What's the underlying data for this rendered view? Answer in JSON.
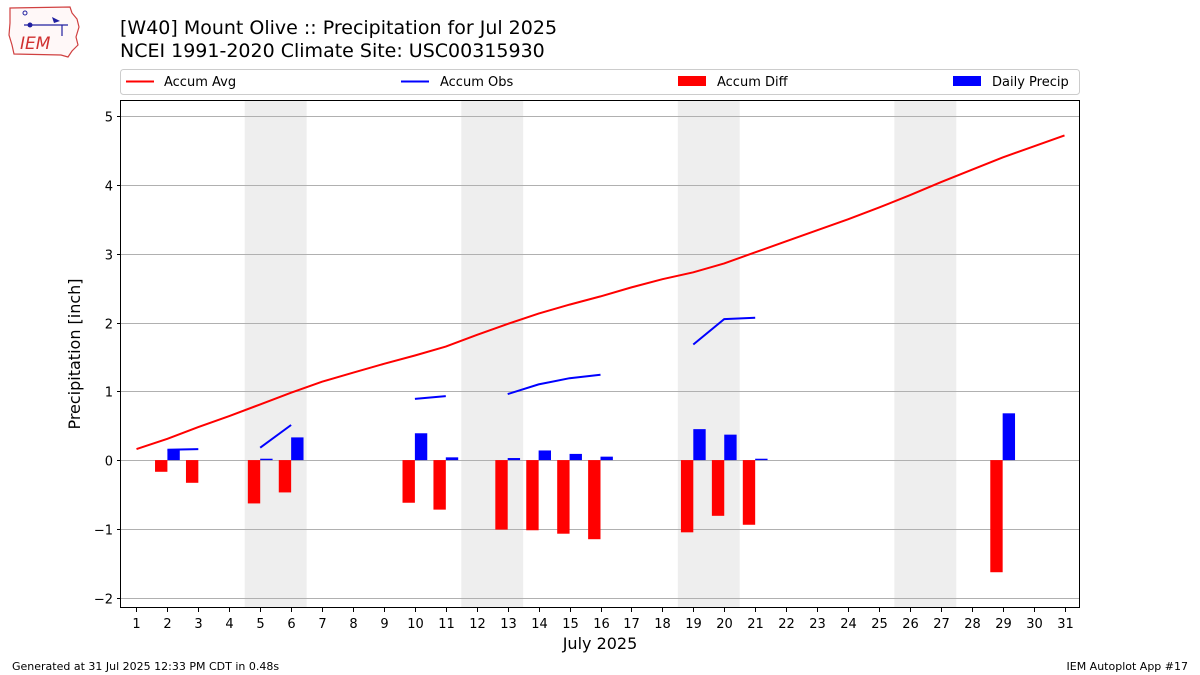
{
  "header": {
    "title": "[W40] Mount Olive :: Precipitation for Jul 2025",
    "subtitle": "NCEI 1991-2020 Climate Site: USC00315930"
  },
  "logo_text": "IEM",
  "footer": {
    "left": "Generated at 31 Jul 2025 12:33 PM CDT in 0.48s",
    "right": "IEM Autoplot App #17"
  },
  "colors": {
    "accum_avg": "#ff0000",
    "accum_obs": "#0000ff",
    "accum_diff": "#ff0000",
    "daily_precip": "#0000ff",
    "weekend_band": "#eeeeee",
    "grid": "#b0b0b0"
  },
  "chart_data": {
    "type": "bar",
    "xlabel": "July 2025",
    "ylabel": "Precipitation [inch]",
    "xlim": [
      0.5,
      31.5
    ],
    "ylim": [
      -2.15,
      5.22
    ],
    "grid": "horizontal",
    "legend_position": "top",
    "x": [
      1,
      2,
      3,
      4,
      5,
      6,
      7,
      8,
      9,
      10,
      11,
      12,
      13,
      14,
      15,
      16,
      17,
      18,
      19,
      20,
      21,
      22,
      23,
      24,
      25,
      26,
      27,
      28,
      29,
      30,
      31
    ],
    "yticks": [
      -2,
      -1,
      0,
      1,
      2,
      3,
      4,
      5
    ],
    "weekends": [
      [
        4.5,
        6.5
      ],
      [
        11.5,
        13.5
      ],
      [
        18.5,
        20.5
      ],
      [
        25.5,
        27.5
      ]
    ],
    "series": [
      {
        "name": "Accum Avg",
        "kind": "line",
        "values": [
          0.16,
          0.31,
          0.48,
          0.64,
          0.81,
          0.98,
          1.14,
          1.27,
          1.4,
          1.52,
          1.65,
          1.82,
          1.98,
          2.13,
          2.26,
          2.38,
          2.51,
          2.63,
          2.73,
          2.86,
          3.02,
          3.18,
          3.34,
          3.5,
          3.67,
          3.85,
          4.04,
          4.22,
          4.4,
          4.56,
          4.72
        ]
      },
      {
        "name": "Accum Obs",
        "kind": "line",
        "values": [
          null,
          0.15,
          0.16,
          null,
          0.18,
          0.51,
          null,
          null,
          null,
          0.89,
          0.93,
          null,
          0.96,
          1.1,
          1.19,
          1.24,
          null,
          null,
          1.68,
          2.05,
          2.07,
          null,
          null,
          null,
          null,
          null,
          null,
          null,
          null,
          null,
          null
        ]
      },
      {
        "name": "Accum Diff",
        "kind": "bar",
        "values": [
          null,
          -0.17,
          -0.33,
          null,
          -0.63,
          -0.47,
          null,
          null,
          null,
          -0.62,
          -0.72,
          null,
          -1.01,
          -1.02,
          -1.07,
          -1.15,
          null,
          null,
          -1.05,
          -0.81,
          -0.94,
          null,
          null,
          null,
          null,
          null,
          null,
          null,
          -1.63,
          null,
          null
        ]
      },
      {
        "name": "Daily Precip",
        "kind": "bar",
        "values": [
          null,
          0.15,
          null,
          null,
          0.02,
          0.33,
          null,
          null,
          null,
          0.39,
          0.04,
          null,
          0.03,
          0.14,
          0.09,
          0.05,
          null,
          null,
          0.45,
          0.37,
          0.02,
          null,
          null,
          null,
          null,
          null,
          null,
          null,
          0.68,
          null,
          null
        ]
      }
    ]
  }
}
